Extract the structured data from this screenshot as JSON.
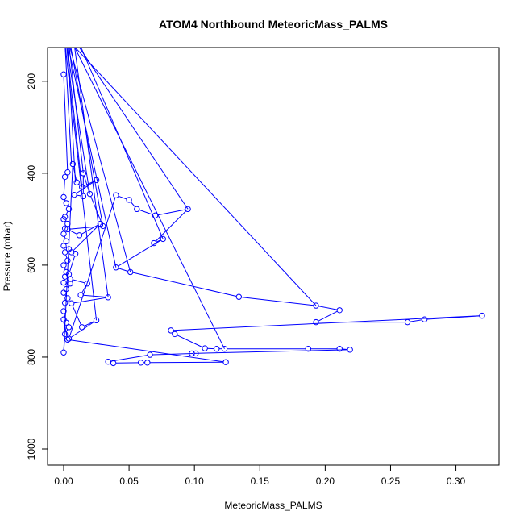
{
  "chart_data": {
    "type": "line",
    "title": "ATOM4 Northbound MeteoricMass_PALMS",
    "xlabel": "MeteoricMass_PALMS",
    "ylabel": "Pressure (mbar)",
    "xlim": [
      0.0,
      0.32
    ],
    "ylim": [
      1000,
      160
    ],
    "y_reversed": true,
    "grid": false,
    "x_ticks": [
      0.0,
      0.05,
      0.1,
      0.15,
      0.2,
      0.25,
      0.3
    ],
    "x_tick_labels": [
      "0.00",
      "0.05",
      "0.10",
      "0.15",
      "0.20",
      "0.25",
      "0.30"
    ],
    "y_ticks": [
      200,
      400,
      600,
      800,
      1000
    ],
    "y_tick_labels": [
      "200",
      "400",
      "600",
      "800",
      "1000"
    ],
    "series": [
      {
        "color": "#0000ff",
        "marker": "open-circle",
        "x": [
          0.0,
          0.003,
          0.001,
          0.0,
          0.002,
          0.004,
          0.001,
          0.0,
          0.003,
          0.001,
          0.0,
          0.002,
          0.0,
          0.004,
          0.001,
          0.003,
          0.0,
          0.002,
          0.001,
          0.0,
          0.005,
          0.002,
          0.0,
          0.003,
          0.001,
          0.0,
          0.002,
          0.004,
          0.001,
          0.0,
          0.007,
          0.01,
          0.014,
          0.025,
          0.008,
          0.015,
          0.015,
          0.02,
          0.03,
          0.003,
          0.012,
          0.028,
          0.006,
          0.009,
          0.004,
          0.005,
          0.018,
          0.013,
          0.034,
          0.006,
          0.014,
          0.025,
          0.004,
          0.04,
          0.05,
          0.056,
          0.07,
          0.095,
          0.069,
          0.076,
          0.04,
          0.051,
          0.134,
          0.193,
          0.211,
          0.193,
          0.263,
          0.276,
          0.32,
          0.082,
          0.085,
          0.108,
          0.117,
          0.123,
          0.187,
          0.211,
          0.219,
          0.098,
          0.101,
          0.066,
          0.034,
          0.038,
          0.059,
          0.064,
          0.124,
          0.003,
          0.0
        ],
        "y": [
          185,
          398,
          408,
          452,
          465,
          478,
          495,
          500,
          510,
          520,
          532,
          548,
          558,
          565,
          572,
          590,
          600,
          615,
          625,
          638,
          640,
          652,
          660,
          672,
          682,
          700,
          725,
          735,
          750,
          790,
          380,
          420,
          430,
          415,
          447,
          450,
          400,
          445,
          515,
          522,
          535,
          510,
          572,
          575,
          620,
          630,
          640,
          665,
          670,
          683,
          735,
          720,
          760,
          448,
          458,
          478,
          492,
          478,
          552,
          543,
          605,
          615,
          669,
          688,
          698,
          724,
          724,
          718,
          710,
          742,
          750,
          781,
          782,
          782,
          782,
          782,
          784,
          792,
          792,
          795,
          810,
          813,
          812,
          812,
          811,
          762,
          718
        ]
      }
    ]
  }
}
